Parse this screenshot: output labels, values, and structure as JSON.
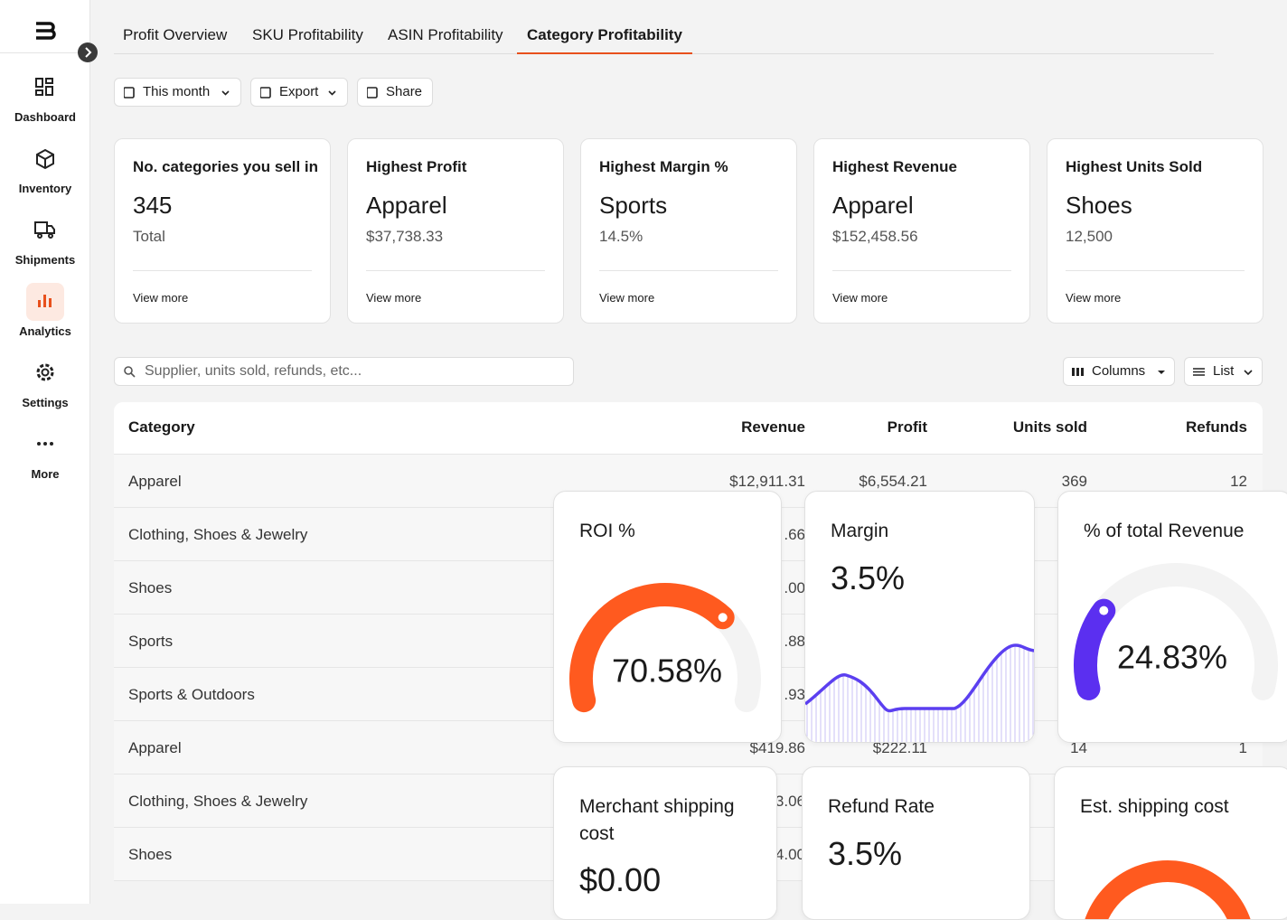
{
  "sidebar": {
    "nav": [
      "Dashboard",
      "Inventory",
      "Shipments",
      "Analytics",
      "Settings",
      "More"
    ]
  },
  "tabs": [
    "Profit Overview",
    "SKU Profitability",
    "ASIN Profitability",
    "Category Profitability"
  ],
  "toolbar": [
    "This month",
    "Export",
    "Share"
  ],
  "cards": [
    {
      "title": "No. categories you sell in",
      "value": "345",
      "sub": "Total",
      "link": "View more"
    },
    {
      "title": "Highest Profit",
      "value": "Apparel",
      "sub": "$37,738.33",
      "link": "View more"
    },
    {
      "title": "Highest Margin %",
      "value": "Sports",
      "sub": "14.5%",
      "link": "View more"
    },
    {
      "title": "Highest Revenue",
      "value": "Apparel",
      "sub": "$152,458.56",
      "link": "View more"
    },
    {
      "title": "Highest Units Sold",
      "value": "Shoes",
      "sub": "12,500",
      "link": "View more"
    }
  ],
  "search": {
    "placeholder": "Supplier, units sold, refunds, etc...",
    "columns": "Columns",
    "list": "List"
  },
  "table": {
    "headers": [
      "Category",
      "Revenue",
      "Profit",
      "Units sold",
      "Refunds"
    ],
    "rows": [
      [
        "Apparel",
        "$12,911.31",
        "$6,554.21",
        "369",
        "12"
      ],
      [
        "Clothing, Shoes & Jewelry",
        ".66",
        null,
        null,
        null
      ],
      [
        "Shoes",
        ".00",
        null,
        null,
        null
      ],
      [
        "Sports",
        ".88",
        null,
        null,
        null
      ],
      [
        "Sports & Outdoors",
        ".93",
        null,
        null,
        null
      ],
      [
        "Apparel",
        "$419.86",
        "$222.11",
        "14",
        "1"
      ],
      [
        "Clothing, Shoes & Jewelry",
        "3.06",
        null,
        null,
        null
      ],
      [
        "Shoes",
        "4.00",
        null,
        null,
        null
      ]
    ]
  },
  "metrics": {
    "roi": {
      "title": "ROI %",
      "value": 70.58,
      "label": "70.58%"
    },
    "margin": {
      "title": "Margin",
      "value": "3.5%"
    },
    "revenue_share": {
      "title": "% of total Revenue",
      "value": 24.83,
      "label": "24.83%"
    },
    "merchant_shipping": {
      "title": "Merchant shipping cost",
      "value": "$0.00"
    },
    "refund_rate": {
      "title": "Refund Rate",
      "value": "3.5%"
    },
    "est_shipping": {
      "title": "Est. shipping cost"
    }
  }
}
